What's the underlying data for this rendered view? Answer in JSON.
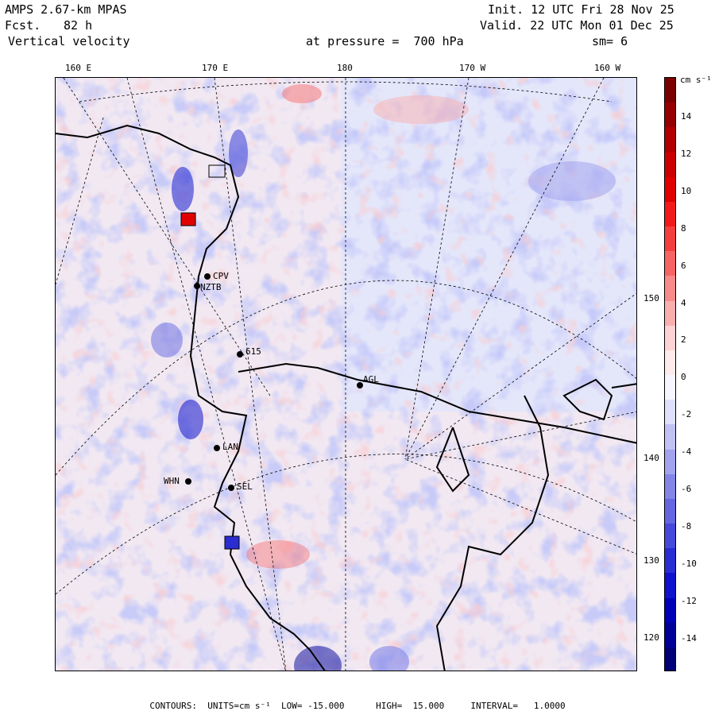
{
  "header": {
    "model": "AMPS 2.67-km MPAS",
    "forecast_label": "Fcst.",
    "forecast_value": "82 h",
    "variable": "Vertical velocity",
    "init": "Init. 12 UTC Fri 28 Nov 25",
    "valid": "Valid. 22 UTC Mon 01 Dec 25",
    "pressure_text": "at pressure =  700 hPa",
    "smoothing": "sm= 6"
  },
  "longitude_labels": [
    "160 E",
    "170 E",
    "180",
    "170 W",
    "160 W"
  ],
  "latitude_labels": [
    "150 W",
    "140 W",
    "130 W",
    "120 W"
  ],
  "stations": [
    {
      "name": "CPV"
    },
    {
      "name": "NZTB"
    },
    {
      "name": "615"
    },
    {
      "name": "LAN"
    },
    {
      "name": "WHN"
    },
    {
      "name": "SEL"
    },
    {
      "name": "AGL"
    }
  ],
  "colorbar": {
    "units_label": "cm s⁻¹",
    "ticks": [
      "14",
      "12",
      "10",
      "8",
      "6",
      "4",
      "2",
      "0",
      "-2",
      "-4",
      "-6",
      "-8",
      "-10",
      "-12",
      "-14"
    ],
    "colors": [
      "#7a0000",
      "#960000",
      "#b20000",
      "#cc0000",
      "#e00000",
      "#f21a1a",
      "#f53e3e",
      "#f76464",
      "#f88a8a",
      "#faafaf",
      "#fcd2d2",
      "#fdeaea",
      "#f6f6ff",
      "#dfe0fb",
      "#c1c2f4",
      "#a2a4ee",
      "#8386e7",
      "#6467e0",
      "#4649d9",
      "#2a2dd2",
      "#1013cb",
      "#0000b8",
      "#000098",
      "#000078"
    ]
  },
  "footer": {
    "text": "CONTOURS:  UNITS=cm s⁻¹  LOW= -15.000      HIGH=  15.000     INTERVAL=   1.0000"
  },
  "palette": {
    "background_pink": "#fbe6e8",
    "background_blue": "#e3e5fb",
    "contour_line": "#000000"
  }
}
